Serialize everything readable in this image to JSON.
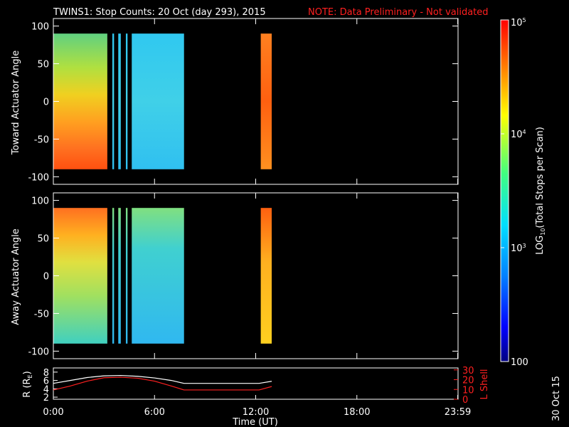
{
  "title": "TWINS1: Stop Counts: 20 Oct (day 293), 2015",
  "note": "NOTE: Data Preliminary - Not validated",
  "stamp": "30 Oct 15",
  "colors": {
    "background": "#000000",
    "axes": "#ffffff",
    "note": "#ff2020",
    "l_shell": "#ff2020",
    "r_line": "#ffffff"
  },
  "colorbar": {
    "label_log": "LOG",
    "label_sub": "10",
    "label_rest": "(Total Stops per Scan)",
    "ticks": [
      {
        "value": 5,
        "label": "10",
        "sup": "5"
      },
      {
        "value": 4,
        "label": "10",
        "sup": "4"
      },
      {
        "value": 3,
        "label": "10",
        "sup": "3"
      },
      {
        "value": 2,
        "label": "100",
        "sup": ""
      }
    ],
    "range": [
      2,
      5
    ],
    "scale": "log"
  },
  "chart_data": [
    {
      "type": "heatmap",
      "title": "",
      "xlabel": "",
      "ylabel": "Toward Actuator Angle",
      "xlim": [
        0,
        24
      ],
      "ylim": [
        -110,
        110
      ],
      "yticks": [
        100,
        50,
        0,
        -50,
        -100
      ],
      "data_coverage_hours": [
        [
          0,
          3.2
        ],
        [
          3.5,
          3.6
        ],
        [
          3.85,
          4.0
        ],
        [
          4.3,
          4.4
        ],
        [
          4.65,
          7.75
        ],
        [
          12.3,
          12.95
        ]
      ],
      "description_levels": {
        "low_angles_early": "red-orange",
        "mid": "yellow-green",
        "later": "cyan-blue",
        "final_block": "orange-red"
      }
    },
    {
      "type": "heatmap",
      "title": "",
      "xlabel": "",
      "ylabel": "Away Actuator Angle",
      "xlim": [
        0,
        24
      ],
      "ylim": [
        -110,
        110
      ],
      "yticks": [
        100,
        50,
        0,
        -50,
        -100
      ],
      "data_coverage_hours": [
        [
          0,
          3.2
        ],
        [
          3.5,
          3.6
        ],
        [
          3.85,
          4.0
        ],
        [
          4.3,
          4.4
        ],
        [
          4.65,
          7.75
        ],
        [
          12.3,
          12.95
        ]
      ]
    },
    {
      "type": "line",
      "title": "",
      "xlabel": "Time (UT)",
      "ylabel_left": "R (R",
      "ylabel_left_sub": "E",
      "ylabel_left_end": ")",
      "ylabel_right": "L Shell",
      "xlim": [
        0,
        24
      ],
      "x_ticks": [
        "0:00",
        "6:00",
        "12:00",
        "18:00",
        "23:59"
      ],
      "y_left_ticks": [
        8,
        6,
        4,
        2
      ],
      "y_right_ticks": [
        30,
        20,
        10,
        0
      ],
      "series": [
        {
          "name": "R",
          "x": [
            0,
            1,
            2,
            3,
            4,
            5,
            6,
            7,
            7.75,
            12.2,
            12.95
          ],
          "values": [
            5.3,
            6.0,
            6.7,
            7.1,
            7.2,
            7.0,
            6.6,
            6.0,
            5.3,
            5.3,
            5.8
          ]
        },
        {
          "name": "L Shell",
          "x": [
            0,
            1,
            2,
            3,
            4,
            5,
            6,
            7,
            7.75,
            12.2,
            12.95
          ],
          "values": [
            9.5,
            13.5,
            18.5,
            22.0,
            22.5,
            21.5,
            18.5,
            13.5,
            9.5,
            9.5,
            13.0
          ]
        }
      ]
    }
  ]
}
